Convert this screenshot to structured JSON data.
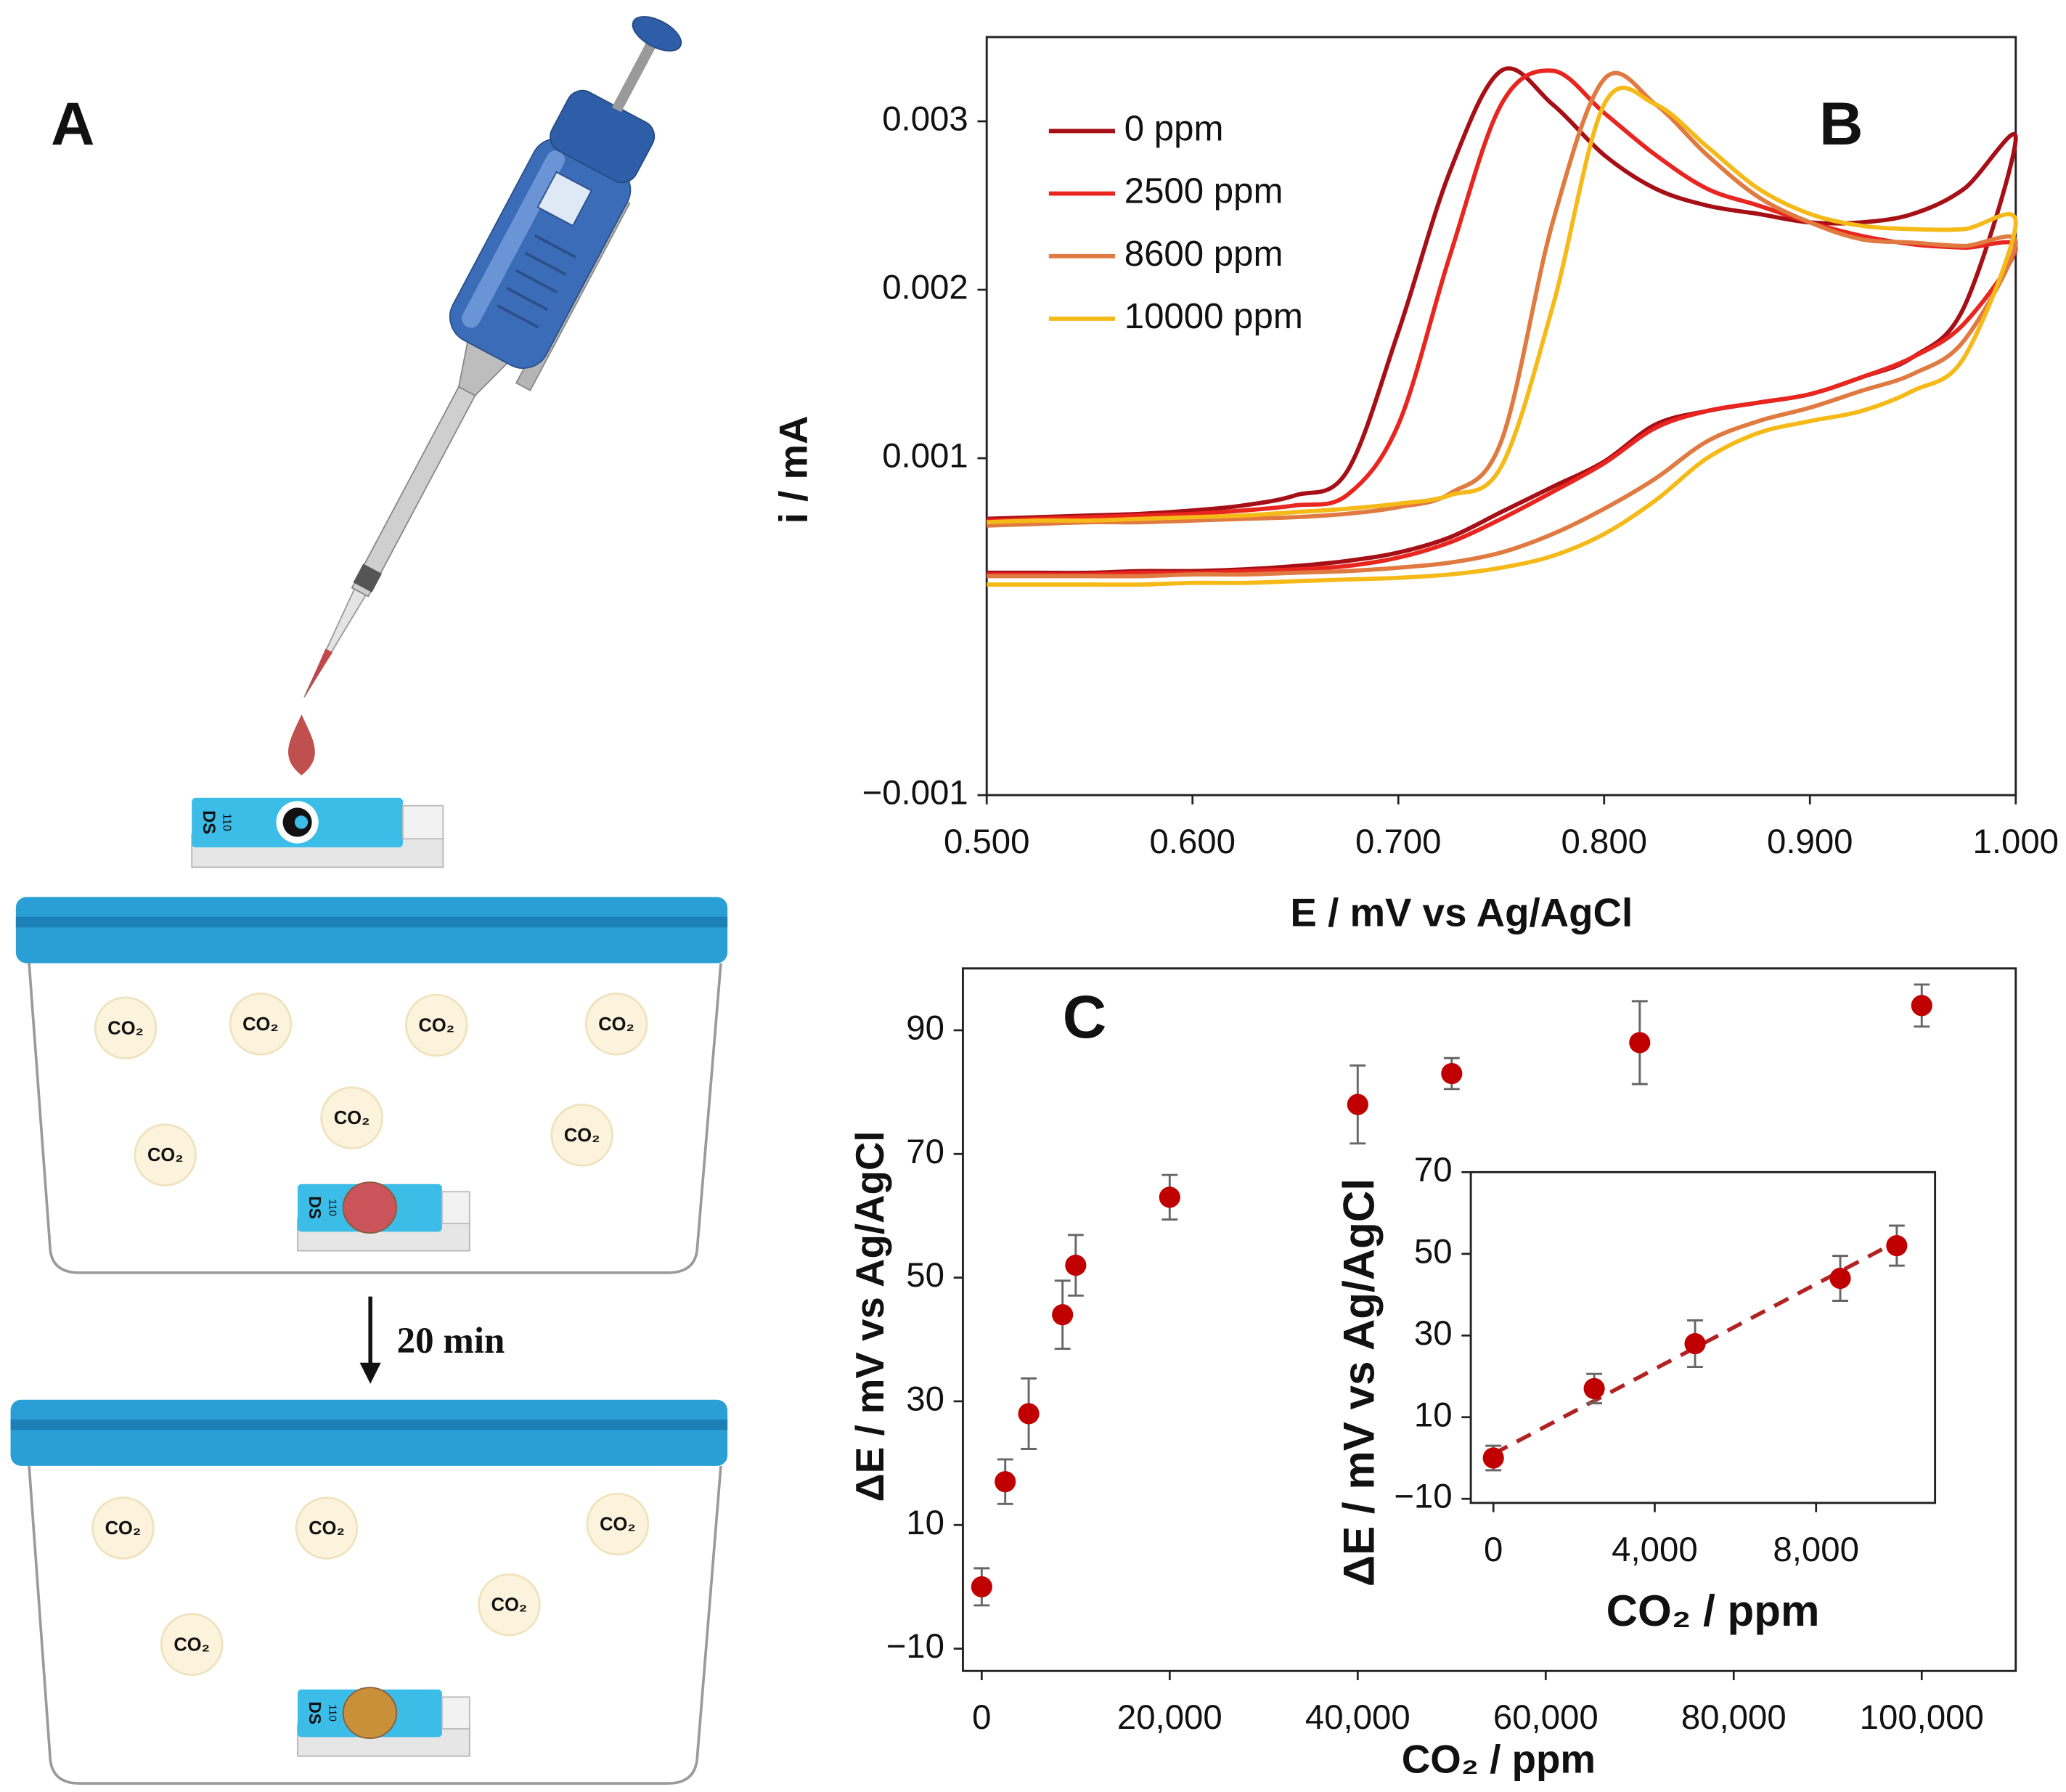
{
  "panel_a": {
    "label": "A",
    "step": "20 min",
    "gas": "CO₂",
    "strip": [
      "DS",
      "110"
    ]
  },
  "chart_data": [
    {
      "type": "line",
      "panel_label": "B",
      "x_label": "E / mV vs Ag/AgCl",
      "y_label": "i / mA",
      "x": [
        0.5,
        0.525,
        0.55,
        0.575,
        0.6,
        0.625,
        0.65,
        0.675,
        0.7,
        0.725,
        0.75,
        0.775,
        0.8,
        0.825,
        0.85,
        0.875,
        0.9,
        0.925,
        0.95,
        0.975,
        1.0,
        0.975,
        0.95,
        0.925,
        0.9,
        0.875,
        0.85,
        0.825,
        0.8,
        0.775,
        0.75,
        0.725,
        0.7,
        0.675,
        0.65,
        0.625,
        0.6,
        0.575,
        0.55,
        0.525,
        0.5
      ],
      "series": [
        {
          "name": "0 ppm",
          "color": "#a50f15",
          "values": [
            0.00064,
            0.00065,
            0.00066,
            0.00067,
            0.00069,
            0.00072,
            0.00078,
            0.00092,
            0.00175,
            0.0027,
            0.0033,
            0.0031,
            0.0028,
            0.0026,
            0.0025,
            0.00245,
            0.0024,
            0.0024,
            0.00245,
            0.0026,
            0.0029,
            0.0019,
            0.0016,
            0.00148,
            0.00138,
            0.00133,
            0.00128,
            0.0012,
            0.00098,
            0.00083,
            0.00068,
            0.00053,
            0.00044,
            0.00039,
            0.00036,
            0.00034,
            0.00033,
            0.00033,
            0.00032,
            0.00032,
            0.00032
          ]
        },
        {
          "name": "2500 ppm",
          "color": "#e8251f",
          "values": [
            0.00063,
            0.00064,
            0.00065,
            0.00066,
            0.00067,
            0.00069,
            0.00072,
            0.00078,
            0.0012,
            0.0022,
            0.0031,
            0.0033,
            0.00305,
            0.0028,
            0.0026,
            0.0025,
            0.0024,
            0.00232,
            0.00227,
            0.00225,
            0.00225,
            0.0018,
            0.0016,
            0.00148,
            0.00138,
            0.00133,
            0.00128,
            0.00118,
            0.00097,
            0.0008,
            0.00064,
            0.0005,
            0.00041,
            0.00036,
            0.00034,
            0.00033,
            0.00032,
            0.00032,
            0.00031,
            0.00031,
            0.00031
          ]
        },
        {
          "name": "8600 ppm",
          "color": "#e07a40",
          "values": [
            0.0006,
            0.00061,
            0.00062,
            0.00062,
            0.00063,
            0.00064,
            0.00065,
            0.00067,
            0.00071,
            0.00079,
            0.0011,
            0.0024,
            0.00325,
            0.0031,
            0.0028,
            0.00255,
            0.0024,
            0.0023,
            0.00228,
            0.00226,
            0.00228,
            0.0017,
            0.0015,
            0.0014,
            0.0013,
            0.00122,
            0.0011,
            0.00088,
            0.0007,
            0.00055,
            0.00044,
            0.00038,
            0.00035,
            0.00033,
            0.00032,
            0.00031,
            0.00031,
            0.0003,
            0.0003,
            0.0003,
            0.0003
          ]
        },
        {
          "name": "10000 ppm",
          "color": "#f5b918",
          "values": [
            0.00062,
            0.00063,
            0.00063,
            0.00064,
            0.00065,
            0.00066,
            0.00068,
            0.0007,
            0.00073,
            0.00078,
            0.00095,
            0.0019,
            0.0031,
            0.0031,
            0.00285,
            0.0026,
            0.00245,
            0.00238,
            0.00236,
            0.00236,
            0.0024,
            0.0016,
            0.0014,
            0.00128,
            0.00122,
            0.00115,
            0.001,
            0.00075,
            0.00055,
            0.00042,
            0.00035,
            0.00031,
            0.00029,
            0.00028,
            0.00027,
            0.00026,
            0.00026,
            0.00025,
            0.00025,
            0.00025,
            0.00025
          ]
        }
      ],
      "xlim": [
        0.5,
        1.0
      ],
      "xticks": [
        {
          "value": 0.5,
          "label": "0.500"
        },
        {
          "value": 0.6,
          "label": "0.600"
        },
        {
          "value": 0.7,
          "label": "0.700"
        },
        {
          "value": 0.8,
          "label": "0.800"
        },
        {
          "value": 0.9,
          "label": "0.900"
        },
        {
          "value": 1.0,
          "label": "1.000"
        }
      ],
      "ylim": [
        -0.001,
        0.0035
      ],
      "yticks": [
        {
          "value": -0.001,
          "label": "−0.001"
        },
        0.001,
        0.002,
        0.003
      ],
      "legend": "upper left"
    },
    {
      "type": "scatter",
      "panel_label": "C",
      "x_label": "CO₂ / ppm",
      "y_label": "ΔE / mV vs Ag/AgCl",
      "x": [
        0,
        2500,
        5000,
        8600,
        10000,
        20000,
        40000,
        50000,
        70000,
        100000
      ],
      "values": [
        0,
        17,
        28,
        44,
        52,
        63,
        78,
        83,
        88,
        94
      ],
      "errors": [
        3,
        3.6,
        5.7,
        5.5,
        4.9,
        3.6,
        6.3,
        2.5,
        6.7,
        3.4
      ],
      "color": "#c00000",
      "xlim": [
        -2000,
        110000
      ],
      "xticks": [
        0,
        {
          "value": 20000,
          "label": "20,000"
        },
        {
          "value": 40000,
          "label": "40,000"
        },
        {
          "value": 60000,
          "label": "60,000"
        },
        {
          "value": 80000,
          "label": "80,000"
        },
        {
          "value": 100000,
          "label": "100,000"
        }
      ],
      "ylim": [
        -13.6,
        100
      ],
      "yticks": [
        {
          "value": -10,
          "label": "−10"
        },
        10,
        30,
        50,
        70,
        90
      ]
    },
    {
      "type": "scatter",
      "inset": true,
      "x_label": "CO₂ / ppm",
      "y_label": "ΔE / mV vs Ag/AgCl",
      "x": [
        0,
        2500,
        5000,
        8600,
        10000
      ],
      "values": [
        0,
        17,
        28,
        44,
        52
      ],
      "errors": [
        3,
        3.6,
        5.7,
        5.5,
        4.9
      ],
      "color": "#c00000",
      "fit": {
        "x": [
          0,
          10000
        ],
        "values": [
          1,
          53
        ],
        "color": "#b22222",
        "dash": true
      },
      "xlim": [
        -560,
        10950
      ],
      "xticks": [
        0,
        {
          "value": 4000,
          "label": "4,000"
        },
        {
          "value": 8000,
          "label": "8,000"
        }
      ],
      "ylim": [
        -11,
        70
      ],
      "yticks": [
        {
          "value": -10,
          "label": "−10"
        },
        10,
        30,
        50,
        70
      ]
    }
  ]
}
